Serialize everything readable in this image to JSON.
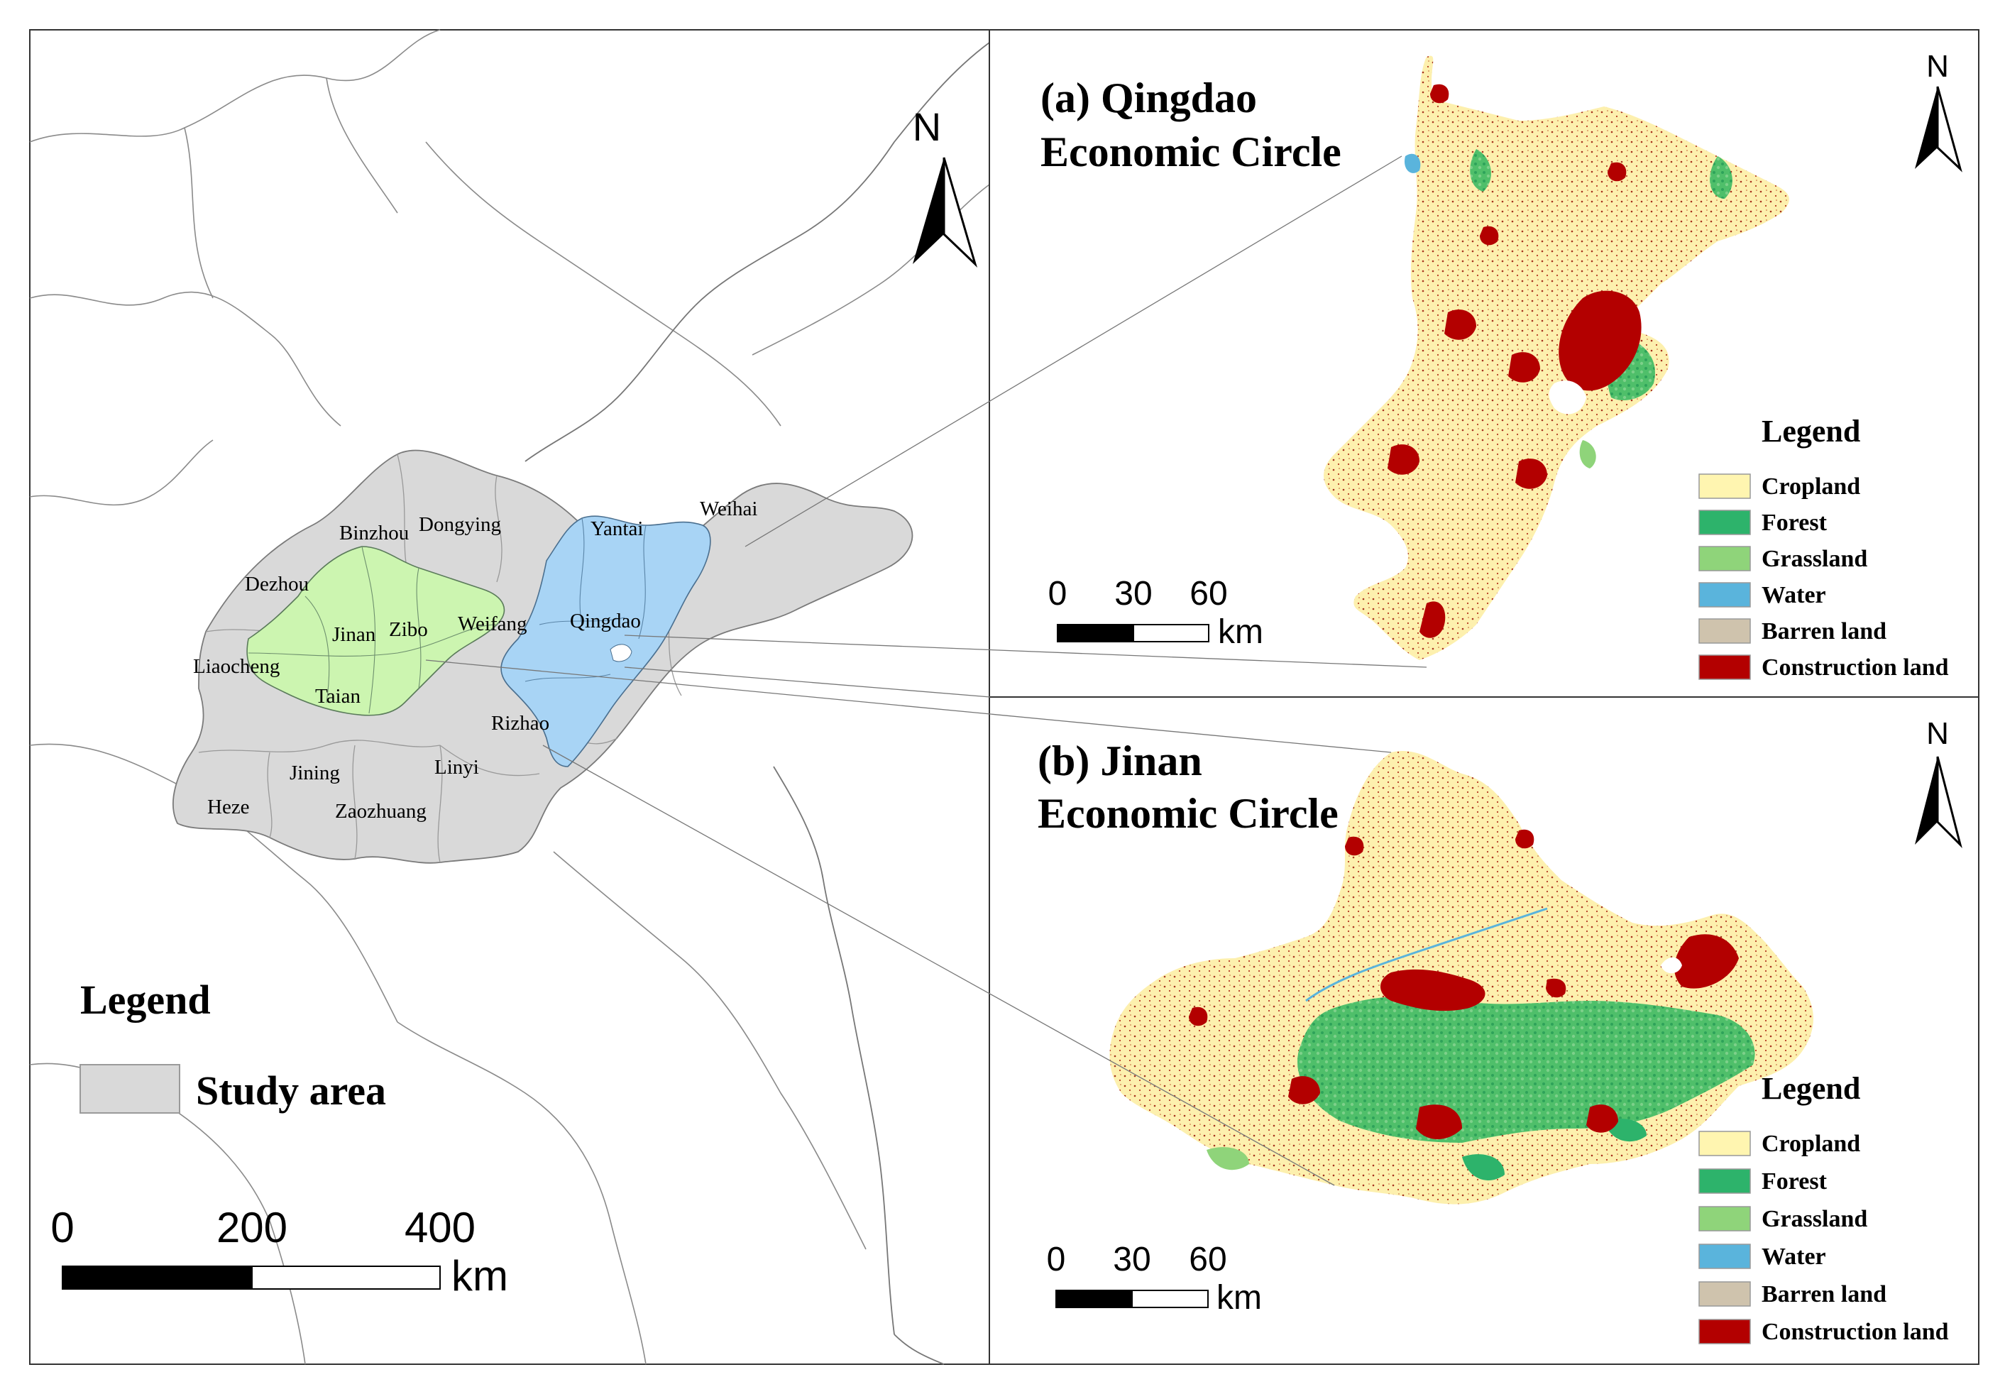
{
  "overview_map": {
    "cities": [
      "Binzhou",
      "Dongying",
      "Yantai",
      "Weihai",
      "Dezhou",
      "Jinan",
      "Zibo",
      "Weifang",
      "Qingdao",
      "Liaocheng",
      "Taian",
      "Rizhao",
      "Jining",
      "Linyi",
      "Heze",
      "Zaozhuang"
    ],
    "legend_title": "Legend",
    "legend_item": "Study area",
    "scale_ticks": [
      "0",
      "200",
      "400"
    ],
    "scale_unit": "km",
    "north_label": "N",
    "colors": {
      "study_area": "#d9d9d9",
      "jinan_circle": "#ccf5b0",
      "qingdao_circle": "#a8d4f5"
    }
  },
  "panel_a": {
    "title_line1": "(a) Qingdao",
    "title_line2": "Economic Circle",
    "north_label": "N",
    "scale_ticks": [
      "0",
      "30",
      "60"
    ],
    "scale_unit": "km",
    "legend_title": "Legend"
  },
  "panel_b": {
    "title_line1": "(b) Jinan",
    "title_line2": "Economic Circle",
    "north_label": "N",
    "scale_ticks": [
      "0",
      "30",
      "60"
    ],
    "scale_unit": "km",
    "legend_title": "Legend"
  },
  "land_use_classes": [
    {
      "label": "Cropland",
      "color": "#fff5b0"
    },
    {
      "label": "Forest",
      "color": "#2db36b"
    },
    {
      "label": "Grassland",
      "color": "#8fd47a"
    },
    {
      "label": "Water",
      "color": "#5ab4dc"
    },
    {
      "label": "Barren land",
      "color": "#cfc3ad"
    },
    {
      "label": "Construction land",
      "color": "#b30000"
    }
  ]
}
